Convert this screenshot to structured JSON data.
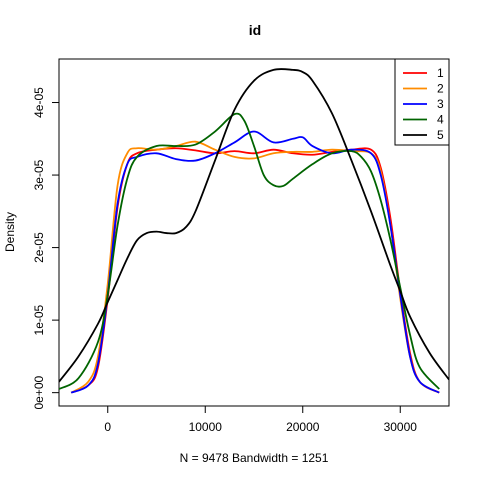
{
  "chart_data": {
    "type": "line",
    "title": "id",
    "xlabel": "N = 9478   Bandwidth = 1251",
    "ylabel": "Density",
    "xlim": [
      -5000,
      35000
    ],
    "ylim": [
      0,
      4.6e-05
    ],
    "x_ticks": [
      0,
      10000,
      20000,
      30000
    ],
    "x_tick_labels": [
      "0",
      "10000",
      "20000",
      "30000"
    ],
    "y_ticks": [
      0,
      1e-05,
      2e-05,
      3e-05,
      4e-05
    ],
    "y_tick_labels": [
      "0e+00",
      "1e-05",
      "2e-05",
      "3e-05",
      "4e-05"
    ],
    "legend_position": "top-right",
    "grid": false,
    "series": [
      {
        "name": "1",
        "color": "#ff0000",
        "x": [
          -3750,
          -2000,
          -1000,
          0,
          1000,
          2000,
          3000,
          5000,
          7000,
          9000,
          11000,
          13000,
          15000,
          17000,
          19000,
          21000,
          23000,
          25000,
          27000,
          28000,
          29000,
          30000,
          31000,
          32000,
          34000
        ],
        "y": [
          0,
          1e-06,
          3.5e-06,
          1.3e-05,
          2.55e-05,
          3.15e-05,
          3.3e-05,
          3.35e-05,
          3.37e-05,
          3.34e-05,
          3.3e-05,
          3.33e-05,
          3.3e-05,
          3.35e-05,
          3.3e-05,
          3.28e-05,
          3.32e-05,
          3.35e-05,
          3.35e-05,
          3.1e-05,
          2.4e-05,
          1.4e-05,
          5.5e-06,
          1.5e-06,
          0
        ]
      },
      {
        "name": "2",
        "color": "#ff8c00",
        "x": [
          -3750,
          -2000,
          -1000,
          0,
          1000,
          2000,
          3000,
          5000,
          7000,
          9000,
          11000,
          13000,
          15000,
          17000,
          19000,
          21000,
          23000,
          25000,
          27000,
          28000,
          29000,
          30000,
          31000,
          32000,
          34000
        ],
        "y": [
          0,
          1.5e-06,
          5e-06,
          1.5e-05,
          2.85e-05,
          3.3e-05,
          3.37e-05,
          3.35e-05,
          3.4e-05,
          3.46e-05,
          3.35e-05,
          3.25e-05,
          3.23e-05,
          3.3e-05,
          3.32e-05,
          3.32e-05,
          3.35e-05,
          3.33e-05,
          3.3e-05,
          3.05e-05,
          2.3e-05,
          1.3e-05,
          5e-06,
          1.5e-06,
          0
        ]
      },
      {
        "name": "3",
        "color": "#0000ff",
        "x": [
          -3750,
          -2000,
          -1000,
          0,
          1000,
          2000,
          3000,
          5000,
          7000,
          9000,
          11000,
          13000,
          15000,
          17000,
          19000,
          20000,
          21000,
          23000,
          25000,
          27000,
          28000,
          29000,
          30000,
          31000,
          32000,
          34000
        ],
        "y": [
          0,
          1e-06,
          4e-06,
          1.35e-05,
          2.6e-05,
          3.15e-05,
          3.25e-05,
          3.3e-05,
          3.22e-05,
          3.2e-05,
          3.3e-05,
          3.45e-05,
          3.6e-05,
          3.45e-05,
          3.5e-05,
          3.52e-05,
          3.4e-05,
          3.3e-05,
          3.35e-05,
          3.3e-05,
          3e-05,
          2.3e-05,
          1.35e-05,
          5e-06,
          1.5e-06,
          0
        ]
      },
      {
        "name": "4",
        "color": "#006400",
        "x": [
          -5000,
          -3000,
          -1000,
          0,
          1000,
          2000,
          3000,
          5000,
          7000,
          9000,
          11000,
          13000,
          14000,
          15000,
          16000,
          17000,
          18000,
          19000,
          21000,
          23000,
          25000,
          26000,
          27000,
          28000,
          29000,
          30000,
          31000,
          32000,
          34000
        ],
        "y": [
          5e-07,
          2e-06,
          7e-06,
          1.35e-05,
          2.3e-05,
          2.95e-05,
          3.25e-05,
          3.4e-05,
          3.4e-05,
          3.42e-05,
          3.6e-05,
          3.84e-05,
          3.75e-05,
          3.4e-05,
          3e-05,
          2.86e-05,
          2.85e-05,
          2.95e-05,
          3.15e-05,
          3.3e-05,
          3.33e-05,
          3.25e-05,
          3.05e-05,
          2.65e-05,
          2.1e-05,
          1.45e-05,
          8e-06,
          3.5e-06,
          5e-07
        ]
      },
      {
        "name": "5",
        "color": "#000000",
        "x": [
          -5000,
          -3000,
          -1000,
          0,
          1000,
          2000,
          3000,
          4000,
          5000,
          6000,
          7000,
          8000,
          9000,
          11000,
          13000,
          15000,
          17000,
          19000,
          20000,
          21000,
          23000,
          25000,
          27000,
          29000,
          30000,
          31000,
          33000,
          35000
        ],
        "y": [
          1.5e-06,
          5e-06,
          9.5e-06,
          1.25e-05,
          1.55e-05,
          1.85e-05,
          2.1e-05,
          2.2e-05,
          2.22e-05,
          2.2e-05,
          2.2e-05,
          2.28e-05,
          2.5e-05,
          3.2e-05,
          3.9e-05,
          4.3e-05,
          4.45e-05,
          4.45e-05,
          4.42e-05,
          4.3e-05,
          3.85e-05,
          3.2e-05,
          2.5e-05,
          1.75e-05,
          1.4e-05,
          1.05e-05,
          5.5e-06,
          1.8e-06
        ]
      }
    ]
  }
}
